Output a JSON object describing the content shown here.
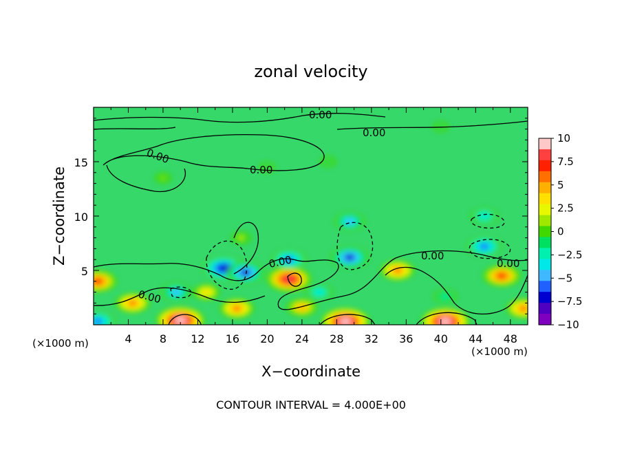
{
  "chart_data": {
    "type": "heatmap",
    "title": "zonal velocity",
    "xlabel": "X−coordinate",
    "ylabel": "Z−coordinate",
    "x_unit_label": "(×1000 m)",
    "z_unit_label": "(×1000 m)",
    "footer": "CONTOUR INTERVAL = 4.000E+00",
    "xlim": [
      0,
      50
    ],
    "ylim": [
      0,
      20
    ],
    "x_ticks": [
      "4",
      "8",
      "12",
      "16",
      "20",
      "24",
      "28",
      "32",
      "36",
      "40",
      "44",
      "48"
    ],
    "y_ticks": [
      "5",
      "10",
      "15"
    ],
    "colorbar": {
      "range": [
        -10,
        10
      ],
      "ticks": [
        "10",
        "7.5",
        "5",
        "2.5",
        "0",
        "−2.5",
        "−5",
        "−7.5",
        "−10"
      ],
      "colors": [
        "#ffc8c8",
        "#ff4040",
        "#ff2000",
        "#ff7000",
        "#ffb000",
        "#ffe000",
        "#e8f800",
        "#a0e800",
        "#40d800",
        "#00e060",
        "#00f0b0",
        "#00e8e8",
        "#40b8ff",
        "#2060ff",
        "#0000d0",
        "#5000c0",
        "#8000c0"
      ]
    },
    "contour_labels": [
      "0.00",
      "0.00",
      "0.00",
      "0.00",
      "0.00",
      "0.00",
      "0.00",
      "0.00"
    ],
    "features": [
      {
        "x": 0.5,
        "z": 4.0,
        "value": 7
      },
      {
        "x": 4.5,
        "z": 2.0,
        "value": 6
      },
      {
        "x": 10.0,
        "z": 0.4,
        "value": 10
      },
      {
        "x": 13.0,
        "z": 3.0,
        "value": 4
      },
      {
        "x": 16.5,
        "z": 1.5,
        "value": 6
      },
      {
        "x": 22.5,
        "z": 4.2,
        "value": 9
      },
      {
        "x": 24.0,
        "z": 1.6,
        "value": 5
      },
      {
        "x": 29.0,
        "z": 0.3,
        "value": 10
      },
      {
        "x": 35.0,
        "z": 5.0,
        "value": 6
      },
      {
        "x": 40.5,
        "z": 0.3,
        "value": 10
      },
      {
        "x": 47.0,
        "z": 4.5,
        "value": 7
      },
      {
        "x": 49.5,
        "z": 1.5,
        "value": 6
      },
      {
        "x": 15.0,
        "z": 5.2,
        "value": -8
      },
      {
        "x": 17.5,
        "z": 4.8,
        "value": -7
      },
      {
        "x": 22.5,
        "z": 6.0,
        "value": -6
      },
      {
        "x": 29.5,
        "z": 6.2,
        "value": -7
      },
      {
        "x": 29.5,
        "z": 9.5,
        "value": -5
      },
      {
        "x": 45.0,
        "z": 7.2,
        "value": -6
      },
      {
        "x": 45.0,
        "z": 10.0,
        "value": -4
      },
      {
        "x": 9.5,
        "z": 3.0,
        "value": -5
      },
      {
        "x": 26.0,
        "z": 3.0,
        "value": -4
      },
      {
        "x": 40.5,
        "z": 2.6,
        "value": -3
      },
      {
        "x": 0.5,
        "z": 0.3,
        "value": -6
      },
      {
        "x": 17.0,
        "z": 8.0,
        "value": 2
      },
      {
        "x": 20.0,
        "z": 14.5,
        "value": -0.8
      },
      {
        "x": 27.0,
        "z": 15.0,
        "value": -1.0
      },
      {
        "x": 40.0,
        "z": 18.2,
        "value": -0.8
      },
      {
        "x": 8.0,
        "z": 13.5,
        "value": 1.2
      }
    ]
  }
}
